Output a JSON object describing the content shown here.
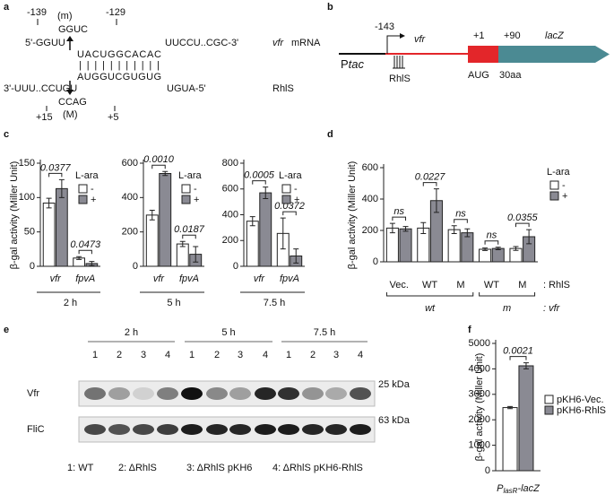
{
  "panel_labels": [
    "a",
    "b",
    "c",
    "d",
    "e",
    "f"
  ],
  "panel_a": {
    "top_left_pos": "-139",
    "top_mut": "(m)",
    "top_right_pos": "-129",
    "top_sub": "GGUC",
    "vfr_5": "5'-GGUU",
    "vfr_3": "UUCCU..CGC-3'",
    "vfr_name": "vfr",
    "vfr_suffix": "mRNA",
    "pair_top": "UACUGGCACAC",
    "pairs": "|||||||||||",
    "pair_bottom": "AUGGUCGUGUG",
    "rhls_3": "3'-UUU..CCUGU",
    "rhls_5": "UGUA-5'",
    "rhls_name": "RhlS",
    "bottom_sub": "CCAG",
    "bottom_left_pos": "+15",
    "bottom_mut": "(M)",
    "bottom_right_pos": "+5"
  },
  "panel_b": {
    "promoter": "P",
    "promoter_sub": "tac",
    "start": "-143",
    "gene": "vfr",
    "plus1": "+1",
    "plus90": "+90",
    "reporter": "lacZ",
    "rhls": "RhlS",
    "aug": "AUG",
    "aa": "30aa"
  },
  "panel_e": {
    "times": [
      "2 h",
      "5 h",
      "7.5 h"
    ],
    "lanes": [
      "1",
      "2",
      "3",
      "4"
    ],
    "rows": [
      "Vfr",
      "FliC"
    ],
    "markers": [
      "25 kDa",
      "63 kDa"
    ],
    "legend": [
      "1: WT",
      "2: ΔRhlS",
      "3: ΔRhlS pKH6",
      "4: ΔRhlS pKH6-RhlS"
    ]
  },
  "chart_data": [
    {
      "type": "bar",
      "title": "2 h",
      "ylabel": "β-gal activity (Miller Unit)",
      "categories": [
        "vfr",
        "fpvA"
      ],
      "italic_categories": true,
      "ylim": [
        0,
        150
      ],
      "yticks": [
        0,
        50,
        100,
        150
      ],
      "legend_title": "L-ara",
      "series": [
        {
          "name": "-",
          "color": "#ffffff",
          "values": [
            92,
            12
          ],
          "errors": [
            7,
            2
          ]
        },
        {
          "name": "+",
          "color": "#8a8a93",
          "values": [
            113,
            4
          ],
          "errors": [
            13,
            3
          ]
        }
      ],
      "annotations": [
        "0.0377",
        "0.0473"
      ]
    },
    {
      "type": "bar",
      "title": "5 h",
      "categories": [
        "vfr",
        "fpvA"
      ],
      "italic_categories": true,
      "ylim": [
        0,
        600
      ],
      "yticks": [
        0,
        200,
        400,
        600
      ],
      "legend_title": "L-ara",
      "series": [
        {
          "name": "-",
          "color": "#ffffff",
          "values": [
            298,
            130
          ],
          "errors": [
            28,
            15
          ]
        },
        {
          "name": "+",
          "color": "#8a8a93",
          "values": [
            540,
            70
          ],
          "errors": [
            12,
            45
          ]
        }
      ],
      "annotations": [
        "0.0010",
        "0.0187"
      ]
    },
    {
      "type": "bar",
      "title": "7.5 h",
      "categories": [
        "vfr",
        "fpvA"
      ],
      "italic_categories": true,
      "ylim": [
        0,
        800
      ],
      "yticks": [
        0,
        200,
        400,
        600,
        800
      ],
      "legend_title": "L-ara",
      "series": [
        {
          "name": "-",
          "color": "#ffffff",
          "values": [
            350,
            255
          ],
          "errors": [
            35,
            120
          ]
        },
        {
          "name": "+",
          "color": "#8a8a93",
          "values": [
            570,
            80
          ],
          "errors": [
            45,
            55
          ]
        }
      ],
      "annotations": [
        "0.0005",
        "0.0372"
      ]
    },
    {
      "type": "bar",
      "ylabel": "β-gal activity (Miller Unit)",
      "categories": [
        "Vec.",
        "WT",
        "M",
        "WT",
        "M"
      ],
      "category_row_label": ": RhlS",
      "groups": [
        "wt",
        "m"
      ],
      "group_row_label": ": vfr",
      "ylim": [
        0,
        600
      ],
      "yticks": [
        0,
        200,
        400,
        600
      ],
      "legend_title": "L-ara",
      "series": [
        {
          "name": "-",
          "color": "#ffffff",
          "values": [
            215,
            215,
            205,
            80,
            85
          ],
          "errors": [
            30,
            35,
            25,
            8,
            12
          ]
        },
        {
          "name": "+",
          "color": "#8a8a93",
          "values": [
            210,
            390,
            185,
            85,
            160
          ],
          "errors": [
            15,
            75,
            25,
            8,
            45
          ]
        }
      ],
      "annotations": [
        "ns",
        "0.0227",
        "ns",
        "ns",
        "0.0355"
      ]
    },
    {
      "type": "bar",
      "ylabel": "β-gal activity (Miller Unit)",
      "xlabel": "P",
      "xlabel_sub": "lasR",
      "xlabel_tail": "-lacZ",
      "ylim": [
        0,
        5000
      ],
      "yticks": [
        0,
        1000,
        2000,
        3000,
        4000,
        5000
      ],
      "series": [
        {
          "name": "pKH6-Vec.",
          "color": "#ffffff",
          "values": [
            2480
          ],
          "errors": [
            40
          ]
        },
        {
          "name": "pKH6-RhlS",
          "color": "#8a8a93",
          "values": [
            4120
          ],
          "errors": [
            120
          ]
        }
      ],
      "annotations": [
        "0.0021"
      ]
    }
  ]
}
